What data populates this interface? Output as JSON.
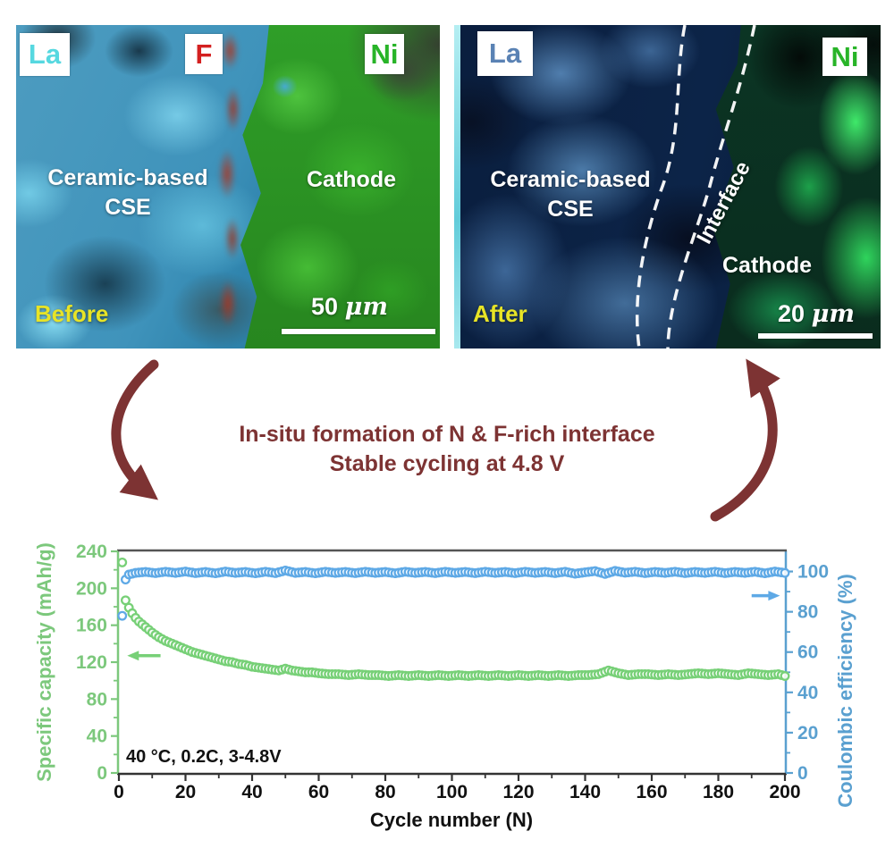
{
  "left_panel": {
    "tag_la": "La",
    "tag_f": "F",
    "tag_ni": "Ni",
    "region_line1": "Ceramic-based",
    "region_line2": "CSE",
    "cathode_label": "Cathode",
    "state_label": "Before",
    "scale_value": "50",
    "scale_unit": "μm",
    "tag_la_color": "#56d8e0",
    "tag_f_color": "#d42020",
    "tag_ni_color": "#28b428"
  },
  "right_panel": {
    "tag_la": "La",
    "tag_ni": "Ni",
    "region_line1": "Ceramic-based",
    "region_line2": "CSE",
    "interface_label": "Interface",
    "cathode_label": "Cathode",
    "state_label": "After",
    "scale_value": "20",
    "scale_unit": "μm",
    "tag_la_color": "#5a82b4",
    "tag_ni_color": "#28b428"
  },
  "center_text": {
    "line1": "In-situ formation of N & F-rich interface",
    "line2": "Stable cycling at 4.8 V",
    "arrow_color": "#7d3333"
  },
  "chart_data": {
    "type": "scatter",
    "xlabel": "Cycle number (N)",
    "ylabel_left": "Specific capacity (mAh/g)",
    "ylabel_right": "Coulombic efficiency (%)",
    "annotation": "40 °C, 0.2C, 3-4.8V",
    "xlim": [
      0,
      200
    ],
    "ylim_left": [
      0,
      240
    ],
    "ylim_right": [
      0,
      110
    ],
    "x_ticks": [
      0,
      20,
      40,
      60,
      80,
      100,
      120,
      140,
      160,
      180,
      200
    ],
    "y_left_ticks": [
      0,
      40,
      80,
      120,
      160,
      200,
      240
    ],
    "y_right_ticks": [
      0,
      20,
      40,
      60,
      80,
      100
    ],
    "grid": false,
    "legend": "none",
    "style": {
      "left_axis_color": "#7cc87c",
      "right_axis_color": "#5aa0d0",
      "x_axis_color": "#333333",
      "capacity_color": "#77d077",
      "efficiency_color": "#5ea9e6"
    },
    "series": [
      {
        "name": "Coulombic efficiency",
        "axis": "right",
        "color": "#5ea9e6",
        "points": [
          [
            1,
            78
          ],
          [
            2,
            96
          ],
          [
            3,
            98.5
          ],
          [
            5,
            99.3
          ],
          [
            8,
            99.8
          ],
          [
            11,
            99.2
          ],
          [
            14,
            99.9
          ],
          [
            17,
            99.3
          ],
          [
            20,
            100
          ],
          [
            23,
            99.2
          ],
          [
            26,
            99.8
          ],
          [
            29,
            99.1
          ],
          [
            32,
            100
          ],
          [
            35,
            99.3
          ],
          [
            38,
            99.8
          ],
          [
            41,
            99.1
          ],
          [
            44,
            99.9
          ],
          [
            47,
            99.2
          ],
          [
            50,
            100.5
          ],
          [
            53,
            99.3
          ],
          [
            56,
            99.8
          ],
          [
            59,
            99.1
          ],
          [
            62,
            99.9
          ],
          [
            65,
            99.3
          ],
          [
            68,
            99.8
          ],
          [
            71,
            99.2
          ],
          [
            74,
            99.9
          ],
          [
            77,
            99.3
          ],
          [
            80,
            99.8
          ],
          [
            83,
            99.1
          ],
          [
            86,
            99.9
          ],
          [
            89,
            99.3
          ],
          [
            92,
            99.8
          ],
          [
            95,
            99.2
          ],
          [
            98,
            99.9
          ],
          [
            101,
            99.3
          ],
          [
            104,
            99.8
          ],
          [
            107,
            99.2
          ],
          [
            110,
            99.9
          ],
          [
            113,
            99.3
          ],
          [
            116,
            99.8
          ],
          [
            119,
            99.2
          ],
          [
            122,
            99.9
          ],
          [
            125,
            99.3
          ],
          [
            128,
            99.8
          ],
          [
            131,
            99.2
          ],
          [
            134,
            99.9
          ],
          [
            137,
            98.9
          ],
          [
            140,
            99.6
          ],
          [
            143,
            100.2
          ],
          [
            146,
            98.8
          ],
          [
            149,
            100.3
          ],
          [
            152,
            99.4
          ],
          [
            155,
            99.9
          ],
          [
            158,
            99.2
          ],
          [
            161,
            99.8
          ],
          [
            164,
            99.3
          ],
          [
            167,
            99.9
          ],
          [
            170,
            99.2
          ],
          [
            173,
            99.8
          ],
          [
            176,
            99.3
          ],
          [
            179,
            99.9
          ],
          [
            182,
            99.2
          ],
          [
            185,
            99.8
          ],
          [
            188,
            99.3
          ],
          [
            191,
            99.9
          ],
          [
            194,
            99.1
          ],
          [
            197,
            100
          ],
          [
            200,
            99.3
          ]
        ]
      },
      {
        "name": "Specific capacity",
        "axis": "left",
        "color": "#77d077",
        "points": [
          [
            1,
            228
          ],
          [
            2,
            187
          ],
          [
            3,
            179
          ],
          [
            4,
            173
          ],
          [
            5,
            168
          ],
          [
            6,
            164
          ],
          [
            7,
            161
          ],
          [
            8,
            158
          ],
          [
            9,
            155
          ],
          [
            10,
            152
          ],
          [
            12,
            147
          ],
          [
            14,
            143
          ],
          [
            16,
            140
          ],
          [
            18,
            137
          ],
          [
            20,
            134
          ],
          [
            22,
            131
          ],
          [
            24,
            129
          ],
          [
            26,
            127
          ],
          [
            28,
            125
          ],
          [
            30,
            123
          ],
          [
            32,
            121
          ],
          [
            34,
            120
          ],
          [
            36,
            118
          ],
          [
            38,
            117
          ],
          [
            40,
            115
          ],
          [
            42,
            114
          ],
          [
            44,
            113
          ],
          [
            46,
            112
          ],
          [
            48,
            111
          ],
          [
            50,
            113
          ],
          [
            52,
            111
          ],
          [
            54,
            110
          ],
          [
            56,
            109
          ],
          [
            58,
            109
          ],
          [
            60,
            108
          ],
          [
            63,
            107
          ],
          [
            66,
            107
          ],
          [
            69,
            106
          ],
          [
            72,
            107
          ],
          [
            75,
            106
          ],
          [
            78,
            106
          ],
          [
            81,
            105
          ],
          [
            84,
            106
          ],
          [
            87,
            105
          ],
          [
            90,
            106
          ],
          [
            93,
            105
          ],
          [
            96,
            106
          ],
          [
            99,
            105
          ],
          [
            102,
            106
          ],
          [
            105,
            105
          ],
          [
            108,
            106
          ],
          [
            111,
            105
          ],
          [
            114,
            106
          ],
          [
            117,
            105
          ],
          [
            120,
            106
          ],
          [
            123,
            105
          ],
          [
            126,
            106
          ],
          [
            129,
            105
          ],
          [
            132,
            106
          ],
          [
            135,
            105
          ],
          [
            138,
            106
          ],
          [
            141,
            106
          ],
          [
            144,
            107
          ],
          [
            147,
            111
          ],
          [
            150,
            108
          ],
          [
            153,
            106
          ],
          [
            156,
            107
          ],
          [
            159,
            107
          ],
          [
            162,
            106
          ],
          [
            165,
            107
          ],
          [
            168,
            106
          ],
          [
            171,
            107
          ],
          [
            174,
            108
          ],
          [
            177,
            107
          ],
          [
            180,
            108
          ],
          [
            183,
            107
          ],
          [
            186,
            106
          ],
          [
            189,
            108
          ],
          [
            192,
            107
          ],
          [
            195,
            106
          ],
          [
            198,
            107
          ],
          [
            200,
            105
          ]
        ]
      }
    ],
    "arrows": [
      {
        "series": "Specific capacity",
        "axis": "left",
        "direction": "left",
        "at_value": 127,
        "from_cycle": 12.5,
        "to_cycle": 2.5,
        "color": "#77d077"
      },
      {
        "series": "Coulombic efficiency",
        "axis": "right",
        "direction": "right",
        "at_value": 88,
        "from_cycle": 190,
        "to_cycle": 198.5,
        "color": "#5ea9e6"
      }
    ]
  }
}
